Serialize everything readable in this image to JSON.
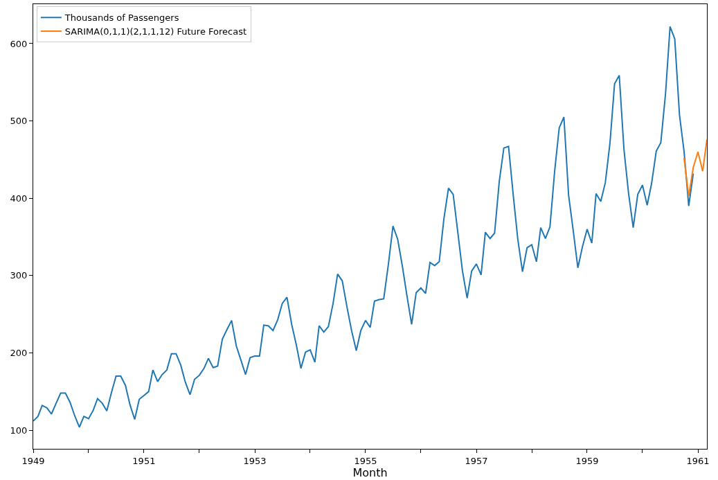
{
  "chart_data": {
    "type": "line",
    "xlabel": "Month",
    "legend": "top left",
    "marker": "none",
    "line_style": "solid",
    "xlim": [
      "1949-01",
      "1961-03"
    ],
    "ylim": [
      76,
      651
    ],
    "xticks": [
      {
        "value": "1949-01",
        "label": "1949"
      },
      {
        "value": "1950-01",
        "label": null
      },
      {
        "value": "1951-01",
        "label": "1951"
      },
      {
        "value": "1952-01",
        "label": null
      },
      {
        "value": "1953-01",
        "label": "1953"
      },
      {
        "value": "1954-01",
        "label": null
      },
      {
        "value": "1955-01",
        "label": "1955"
      },
      {
        "value": "1956-01",
        "label": null
      },
      {
        "value": "1957-01",
        "label": "1957"
      },
      {
        "value": "1958-01",
        "label": null
      },
      {
        "value": "1959-01",
        "label": "1959"
      },
      {
        "value": "1960-01",
        "label": null
      },
      {
        "value": "1961-01",
        "label": "1961"
      }
    ],
    "yticks": [
      100,
      200,
      300,
      400,
      500,
      600
    ],
    "series": [
      {
        "name": "Thousands of Passengers",
        "color": "#1f77b4",
        "x": [
          "1949-01",
          "1949-02",
          "1949-03",
          "1949-04",
          "1949-05",
          "1949-06",
          "1949-07",
          "1949-08",
          "1949-09",
          "1949-10",
          "1949-11",
          "1949-12",
          "1950-01",
          "1950-02",
          "1950-03",
          "1950-04",
          "1950-05",
          "1950-06",
          "1950-07",
          "1950-08",
          "1950-09",
          "1950-10",
          "1950-11",
          "1950-12",
          "1951-01",
          "1951-02",
          "1951-03",
          "1951-04",
          "1951-05",
          "1951-06",
          "1951-07",
          "1951-08",
          "1951-09",
          "1951-10",
          "1951-11",
          "1951-12",
          "1952-01",
          "1952-02",
          "1952-03",
          "1952-04",
          "1952-05",
          "1952-06",
          "1952-07",
          "1952-08",
          "1952-09",
          "1952-10",
          "1952-11",
          "1952-12",
          "1953-01",
          "1953-02",
          "1953-03",
          "1953-04",
          "1953-05",
          "1953-06",
          "1953-07",
          "1953-08",
          "1953-09",
          "1953-10",
          "1953-11",
          "1953-12",
          "1954-01",
          "1954-02",
          "1954-03",
          "1954-04",
          "1954-05",
          "1954-06",
          "1954-07",
          "1954-08",
          "1954-09",
          "1954-10",
          "1954-11",
          "1954-12",
          "1955-01",
          "1955-02",
          "1955-03",
          "1955-04",
          "1955-05",
          "1955-06",
          "1955-07",
          "1955-08",
          "1955-09",
          "1955-10",
          "1955-11",
          "1955-12",
          "1956-01",
          "1956-02",
          "1956-03",
          "1956-04",
          "1956-05",
          "1956-06",
          "1956-07",
          "1956-08",
          "1956-09",
          "1956-10",
          "1956-11",
          "1956-12",
          "1957-01",
          "1957-02",
          "1957-03",
          "1957-04",
          "1957-05",
          "1957-06",
          "1957-07",
          "1957-08",
          "1957-09",
          "1957-10",
          "1957-11",
          "1957-12",
          "1958-01",
          "1958-02",
          "1958-03",
          "1958-04",
          "1958-05",
          "1958-06",
          "1958-07",
          "1958-08",
          "1958-09",
          "1958-10",
          "1958-11",
          "1958-12",
          "1959-01",
          "1959-02",
          "1959-03",
          "1959-04",
          "1959-05",
          "1959-06",
          "1959-07",
          "1959-08",
          "1959-09",
          "1959-10",
          "1959-11",
          "1959-12",
          "1960-01",
          "1960-02",
          "1960-03",
          "1960-04",
          "1960-05",
          "1960-06",
          "1960-07",
          "1960-08",
          "1960-09",
          "1960-10",
          "1960-11",
          "1960-12"
        ],
        "values": [
          112,
          118,
          132,
          129,
          121,
          135,
          148,
          148,
          136,
          119,
          104,
          118,
          115,
          126,
          141,
          135,
          125,
          149,
          170,
          170,
          158,
          133,
          114,
          140,
          145,
          150,
          178,
          163,
          172,
          178,
          199,
          199,
          184,
          162,
          146,
          166,
          171,
          180,
          193,
          181,
          183,
          218,
          230,
          242,
          209,
          191,
          172,
          194,
          196,
          196,
          236,
          235,
          229,
          243,
          264,
          272,
          237,
          211,
          180,
          201,
          204,
          188,
          235,
          227,
          234,
          264,
          302,
          293,
          259,
          229,
          203,
          229,
          242,
          233,
          267,
          269,
          270,
          315,
          364,
          347,
          312,
          274,
          237,
          278,
          284,
          277,
          317,
          313,
          318,
          374,
          413,
          405,
          355,
          306,
          271,
          306,
          315,
          301,
          356,
          348,
          355,
          422,
          465,
          467,
          404,
          347,
          305,
          336,
          340,
          318,
          362,
          348,
          363,
          435,
          491,
          505,
          404,
          359,
          310,
          337,
          360,
          342,
          406,
          396,
          420,
          472,
          548,
          559,
          463,
          407,
          362,
          405,
          417,
          391,
          419,
          461,
          472,
          535,
          622,
          606,
          508,
          461,
          390,
          432
        ]
      },
      {
        "name": "SARIMA(0,1,1)(2,1,1,12) Future Forecast",
        "color": "#ff7f0e",
        "x": [
          "1960-10",
          "1960-11",
          "1960-12",
          "1961-01",
          "1961-02",
          "1961-03"
        ],
        "values": [
          452,
          403,
          440,
          460,
          435,
          476
        ]
      }
    ]
  }
}
